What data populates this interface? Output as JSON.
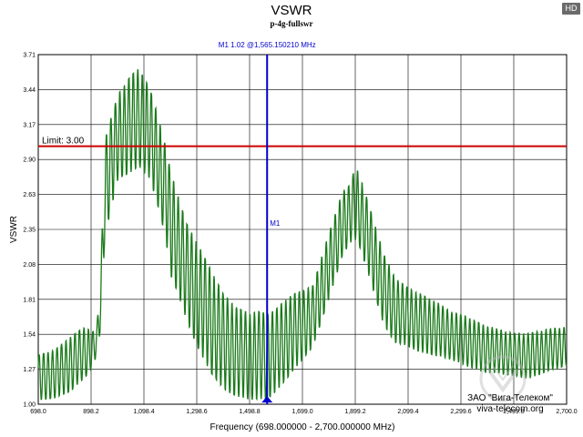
{
  "badge": "HD",
  "chart_data": {
    "type": "line",
    "title": "VSWR",
    "subtitle": "p-4g-fullswr",
    "ylabel": "VSWR",
    "xlabel": "Frequency (698.000000 - 2,700.000000 MHz)",
    "xlim": [
      698.0,
      2700.0
    ],
    "ylim": [
      1.0,
      3.71
    ],
    "x_ticks": [
      "698.0",
      "898.2",
      "1,098.4",
      "1,298.6",
      "1,498.8",
      "1,699.0",
      "1,899.2",
      "2,099.4",
      "2,299.6",
      "2,499.8",
      "2,700.0"
    ],
    "y_ticks": [
      "1.00",
      "1.27",
      "1.54",
      "1.81",
      "2.08",
      "2.35",
      "2.63",
      "2.90",
      "3.17",
      "3.44",
      "3.71"
    ],
    "limit": {
      "value": 3.0,
      "label": "Limit: 3.00",
      "color": "#cc0000"
    },
    "marker": {
      "name": "M1",
      "label": "M1   1.02 @1,565.150210 MHz",
      "x": 1565.15021,
      "y": 1.02,
      "color": "#0000cc"
    },
    "series_color": "#1a7a1a",
    "series": [
      {
        "envelope_x": [
          698,
          760,
          820,
          860,
          880,
          900,
          920,
          935,
          950,
          1000,
          1050,
          1080,
          1120,
          1150,
          1180,
          1200,
          1230,
          1260,
          1300,
          1350,
          1400,
          1450,
          1500,
          1530,
          1565,
          1590,
          1620,
          1660,
          1700,
          1740,
          1780,
          1820,
          1850,
          1880,
          1900,
          1920,
          1950,
          1980,
          2010,
          2050,
          2100,
          2150,
          2200,
          2260,
          2320,
          2380,
          2440,
          2500,
          2560,
          2620,
          2700
        ],
        "envelope_lo": [
          1.03,
          1.05,
          1.1,
          1.18,
          1.22,
          1.28,
          1.38,
          1.6,
          2.3,
          2.75,
          2.8,
          2.85,
          2.75,
          2.55,
          2.3,
          2.0,
          1.85,
          1.65,
          1.45,
          1.25,
          1.12,
          1.06,
          1.04,
          1.04,
          1.04,
          1.08,
          1.15,
          1.25,
          1.35,
          1.45,
          1.7,
          1.95,
          2.15,
          2.25,
          2.28,
          2.2,
          2.0,
          1.8,
          1.6,
          1.48,
          1.45,
          1.4,
          1.38,
          1.35,
          1.3,
          1.25,
          1.24,
          1.22,
          1.2,
          1.25,
          1.3
        ],
        "envelope_hi": [
          1.38,
          1.42,
          1.52,
          1.58,
          1.6,
          1.55,
          1.6,
          2.0,
          3.05,
          3.4,
          3.55,
          3.6,
          3.45,
          3.25,
          3.0,
          2.8,
          2.6,
          2.4,
          2.25,
          2.05,
          1.85,
          1.75,
          1.7,
          1.72,
          1.7,
          1.72,
          1.78,
          1.85,
          1.88,
          1.92,
          2.2,
          2.45,
          2.65,
          2.7,
          2.85,
          2.75,
          2.55,
          2.35,
          2.15,
          1.98,
          1.9,
          1.85,
          1.8,
          1.72,
          1.68,
          1.62,
          1.58,
          1.55,
          1.55,
          1.58,
          1.6
        ],
        "oscillation_period_mhz": 17
      }
    ],
    "grid": true,
    "legend": "none"
  },
  "watermark": {
    "line1": "ЗАО \"Вига-Телеком\"",
    "line2": "viva-telecom.org"
  }
}
